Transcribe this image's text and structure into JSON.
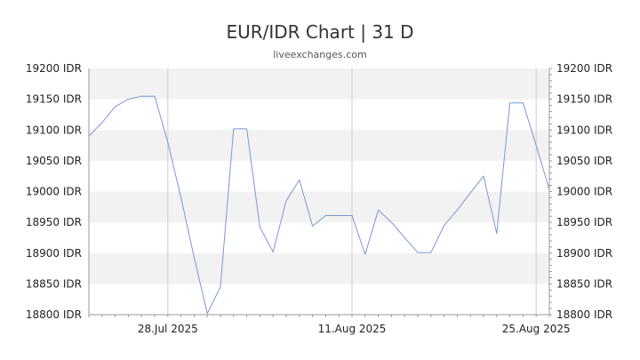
{
  "title": "EUR/IDR Chart | 31 D",
  "subtitle": "liveexchanges.com",
  "colors": {
    "line": "#7b96d4",
    "band": "#f2f2f2",
    "grid": "#cccccc",
    "axis": "#999999"
  },
  "chart_data": {
    "type": "line",
    "x_tick_labels": [
      "28.Jul 2025",
      "11.Aug 2025",
      "25.Aug 2025"
    ],
    "x_tick_days": [
      7,
      21,
      35
    ],
    "xlim_days": [
      1,
      36
    ],
    "y_unit": "IDR",
    "ylim": [
      18800,
      19200
    ],
    "y_ticks": [
      18800,
      18850,
      18900,
      18950,
      19000,
      19050,
      19100,
      19150,
      19200
    ],
    "y_tick_labels": [
      "18800 IDR",
      "18850 IDR",
      "18900 IDR",
      "18950 IDR",
      "19000 IDR",
      "19050 IDR",
      "19100 IDR",
      "19150 IDR",
      "19200 IDR"
    ],
    "grid": true,
    "series": [
      {
        "x_days": [
          1,
          2,
          3,
          4,
          5,
          6,
          7,
          8,
          9,
          10,
          11,
          12,
          13,
          14,
          15,
          16,
          17,
          18,
          19,
          20,
          21,
          22,
          23,
          24,
          25,
          26,
          27,
          28,
          29,
          30,
          31,
          32,
          33,
          34,
          35,
          36
        ],
        "values": [
          19090,
          19112,
          19138,
          19150,
          19155,
          19155,
          19080,
          18990,
          18893,
          18802,
          18845,
          19102,
          19102,
          18942,
          18902,
          18985,
          19019,
          18944,
          18961,
          18961,
          18961,
          18898,
          18970,
          18950,
          18925,
          18901,
          18901,
          18945,
          18970,
          18998,
          19025,
          18932,
          19144,
          19144,
          19075,
          19003
        ]
      }
    ]
  }
}
